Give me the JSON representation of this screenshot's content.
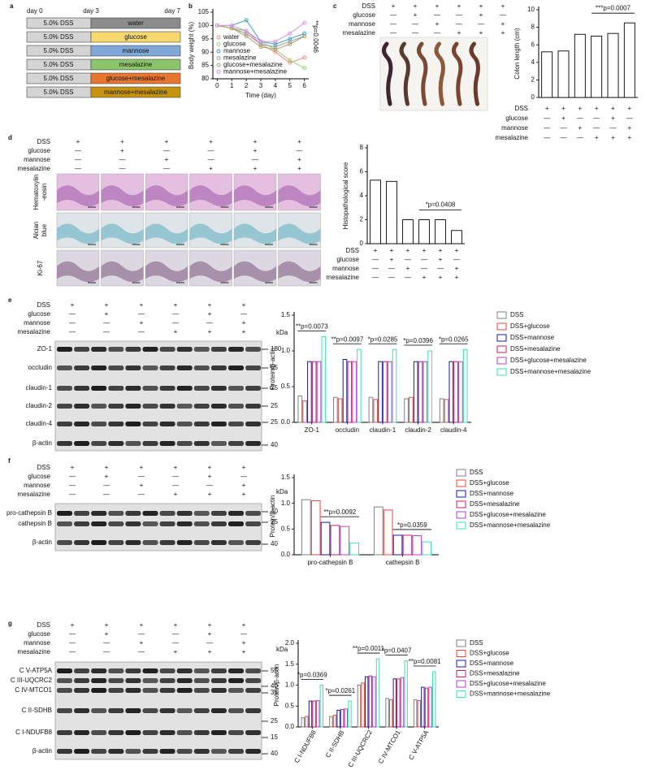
{
  "panel_labels": [
    "a",
    "b",
    "c",
    "d",
    "e",
    "f",
    "g"
  ],
  "schedule": {
    "days": [
      "day 0",
      "day 3",
      "day 7"
    ],
    "rows": [
      {
        "pretreatment": "5.0% DSS",
        "treatment": "water",
        "color": "#8c8c8c"
      },
      {
        "pretreatment": "5.0% DSS",
        "treatment": "glucose",
        "color": "#f6d86e"
      },
      {
        "pretreatment": "5.0% DSS",
        "treatment": "mannose",
        "color": "#7fa8d8"
      },
      {
        "pretreatment": "5.0% DSS",
        "treatment": "mesalazine",
        "color": "#8cc46c"
      },
      {
        "pretreatment": "5.0% DSS",
        "treatment": "glucose+mesalazine",
        "color": "#e8762e"
      },
      {
        "pretreatment": "5.0% DSS",
        "treatment": "mannose+mesalazine",
        "color": "#c6930e"
      }
    ]
  },
  "treatment_tables": {
    "c_top": {
      "rows": [
        {
          "label": "DSS",
          "marks": [
            "+",
            "+",
            "+",
            "+",
            "+",
            "+"
          ]
        },
        {
          "label": "glucose",
          "marks": [
            "—",
            "+",
            "—",
            "—",
            "+",
            "—"
          ]
        },
        {
          "label": "mannose",
          "marks": [
            "—",
            "—",
            "+",
            "—",
            "—",
            "+"
          ]
        },
        {
          "label": "mesalazine",
          "marks": [
            "—",
            "—",
            "—",
            "+",
            "+",
            "+"
          ]
        }
      ]
    },
    "c_bottom": {
      "rows": [
        {
          "label": "DSS",
          "marks": [
            "+",
            "+",
            "+",
            "+",
            "+",
            "+"
          ]
        },
        {
          "label": "glucose",
          "marks": [
            "—",
            "+",
            "—",
            "—",
            "+",
            "—"
          ]
        },
        {
          "label": "mannose",
          "marks": [
            "—",
            "—",
            "+",
            "—",
            "—",
            "+"
          ]
        },
        {
          "label": "mesalazine",
          "marks": [
            "—",
            "—",
            "—",
            "+",
            "+",
            "+"
          ]
        }
      ]
    },
    "d_top": {
      "rows": [
        {
          "label": "DSS",
          "marks": [
            "+",
            "+",
            "+",
            "+",
            "+",
            "+"
          ]
        },
        {
          "label": "glucose",
          "marks": [
            "—",
            "+",
            "—",
            "—",
            "+",
            "—"
          ]
        },
        {
          "label": "mannose",
          "marks": [
            "—",
            "—",
            "+",
            "—",
            "—",
            "+"
          ]
        },
        {
          "label": "mesalazine",
          "marks": [
            "—",
            "—",
            "—",
            "+",
            "+",
            "+"
          ]
        }
      ]
    },
    "d_bottom": {
      "rows": [
        {
          "label": "DSS",
          "marks": [
            "+",
            "+",
            "+",
            "+",
            "+",
            "+"
          ]
        },
        {
          "label": "glucose",
          "marks": [
            "—",
            "+",
            "—",
            "—",
            "+",
            "—"
          ]
        },
        {
          "label": "mannose",
          "marks": [
            "—",
            "—",
            "+",
            "—",
            "—",
            "+"
          ]
        },
        {
          "label": "mesalazine",
          "marks": [
            "—",
            "—",
            "—",
            "+",
            "+",
            "+"
          ]
        }
      ]
    },
    "e": {
      "rows": [
        {
          "label": "DSS",
          "marks": [
            "+",
            "+",
            "+",
            "+",
            "+",
            "+"
          ]
        },
        {
          "label": "glucose",
          "marks": [
            "—",
            "+",
            "—",
            "—",
            "+",
            "—"
          ]
        },
        {
          "label": "mannose",
          "marks": [
            "—",
            "—",
            "+",
            "—",
            "—",
            "+"
          ]
        },
        {
          "label": "mesalazine",
          "marks": [
            "—",
            "—",
            "—",
            "+",
            "+",
            "+"
          ]
        }
      ]
    },
    "f": {
      "rows": [
        {
          "label": "DSS",
          "marks": [
            "+",
            "+",
            "+",
            "+",
            "+",
            "+"
          ]
        },
        {
          "label": "glucose",
          "marks": [
            "—",
            "+",
            "—",
            "—",
            "+",
            "—"
          ]
        },
        {
          "label": "mannose",
          "marks": [
            "—",
            "—",
            "+",
            "—",
            "—",
            "+"
          ]
        },
        {
          "label": "mesalazine",
          "marks": [
            "—",
            "—",
            "—",
            "+",
            "+",
            "+"
          ]
        }
      ]
    },
    "g": {
      "rows": [
        {
          "label": "DSS",
          "marks": [
            "+",
            "+",
            "+",
            "+",
            "+",
            "+"
          ]
        },
        {
          "label": "glucose",
          "marks": [
            "—",
            "+",
            "—",
            "—",
            "+",
            "—"
          ]
        },
        {
          "label": "mannose",
          "marks": [
            "—",
            "—",
            "+",
            "—",
            "—",
            "+"
          ]
        },
        {
          "label": "mesalazine",
          "marks": [
            "—",
            "—",
            "—",
            "+",
            "+",
            "+"
          ]
        }
      ]
    }
  },
  "histology": {
    "row_labels": [
      [
        "Hematoxylin",
        "-eosin"
      ],
      [
        "Alcian",
        "blue"
      ],
      [
        "Ki-67"
      ]
    ]
  },
  "blots": {
    "e": {
      "unit": "kDa",
      "bands": [
        "ZO-1",
        "occludin",
        "claudin-1",
        "claudin-2",
        "claudin-4",
        "β-actin"
      ],
      "markers": [
        180,
        55,
        25,
        25,
        25,
        40
      ]
    },
    "f": {
      "unit": "kDa",
      "bands": [
        "pro-cathepsin B",
        "cathepsin B",
        "β-actin"
      ],
      "markers": [
        40,
        25,
        40
      ]
    },
    "g": {
      "unit": "kDa",
      "bands": [
        "C V-ATP5A",
        "C III-UQCRC2",
        "C IV-MTCO1",
        "C II-SDHB",
        "C I-NDUFB8",
        "β-actin"
      ],
      "markers": [
        55,
        40,
        35,
        25,
        15,
        40
      ]
    }
  },
  "chart_data": [
    {
      "type": "line",
      "xlabel": "Time (day)",
      "ylabel": "Body weight (%)",
      "x": [
        0,
        1,
        2,
        3,
        4,
        5,
        6
      ],
      "xlim": [
        -0.3,
        6.3
      ],
      "xticks": [
        0,
        1,
        2,
        3,
        4,
        5,
        6
      ],
      "ylim": [
        80,
        105
      ],
      "yticks": [
        80,
        85,
        90,
        95,
        100,
        105
      ],
      "legend": "lower left",
      "annotation": "**p=0.0046",
      "series": [
        {
          "name": "water",
          "color": "#f08a8a",
          "values": [
            100,
            99,
            98,
            93,
            90,
            86,
            88
          ]
        },
        {
          "name": "glucose",
          "color": "#9ccf7c",
          "values": [
            100,
            99,
            98,
            94,
            91,
            87,
            84
          ]
        },
        {
          "name": "mannose",
          "color": "#3c9cc0",
          "values": [
            100,
            100,
            102,
            94,
            93,
            95,
            97
          ]
        },
        {
          "name": "mesalazine",
          "color": "#9a98a8",
          "values": [
            100,
            99,
            97,
            93,
            92,
            94,
            96
          ]
        },
        {
          "name": "glucose+mesalazine",
          "color": "#a8a060",
          "values": [
            100,
            99,
            96,
            92,
            91,
            93,
            96
          ]
        },
        {
          "name": "mannose+mesalazine",
          "color": "#d890e8",
          "values": [
            100,
            100,
            98,
            94,
            94,
            97,
            101
          ]
        }
      ]
    },
    {
      "type": "bar",
      "ylabel": "Colon length (cm)",
      "values": [
        5.2,
        5.3,
        7.2,
        7.0,
        7.3,
        8.5
      ],
      "color": "#ffffff",
      "edgecolor": "#000000",
      "ylim": [
        0,
        10
      ],
      "yticks": [
        0,
        2,
        4,
        6,
        8,
        10
      ],
      "annotation": "***p=0.0007"
    },
    {
      "type": "bar",
      "ylabel": "Histopathological score",
      "values": [
        5.3,
        5.2,
        2.0,
        2.0,
        2.0,
        1.1
      ],
      "color": "#ffffff",
      "edgecolor": "#000000",
      "ylim": [
        0,
        8
      ],
      "yticks": [
        0,
        2,
        4,
        6,
        8
      ],
      "annotation": "*p=0.0408"
    },
    {
      "type": "grouped_bar",
      "ylabel": "Protein/β-actin",
      "categories": [
        "ZO-1",
        "occludin",
        "claudin-1",
        "claudin-2",
        "claudin-4"
      ],
      "ylim": [
        0,
        1.5
      ],
      "yticks": [
        {
          "value": 0,
          "label": "0.0"
        },
        0.5,
        {
          "value": 1,
          "label": "1.0"
        },
        1.5
      ],
      "legend": "right",
      "annotations": [
        "**p=0.0073",
        "**p=0.0097",
        "*p=0.0285",
        "*p=0.0396",
        "*p=0.0265"
      ],
      "series": [
        {
          "name": "DSS",
          "color": "#808080",
          "values": [
            0.37,
            0.35,
            0.35,
            0.33,
            0.33
          ]
        },
        {
          "name": "DSS+glucose",
          "color": "#e8483c",
          "values": [
            0.3,
            0.33,
            0.32,
            0.35,
            0.32
          ]
        },
        {
          "name": "DSS+mannose",
          "color": "#1a1aa0",
          "values": [
            0.85,
            0.88,
            0.85,
            0.85,
            0.85
          ]
        },
        {
          "name": "DSS+mesalazine",
          "color": "#c0206a",
          "values": [
            0.85,
            0.85,
            0.85,
            0.85,
            0.85
          ]
        },
        {
          "name": "DSS+glucose+mesalazine",
          "color": "#b040d0",
          "values": [
            0.85,
            0.85,
            0.85,
            0.85,
            0.85
          ]
        },
        {
          "name": "DSS+mannose+mesalazine",
          "color": "#40e0b0",
          "values": [
            1.2,
            1.02,
            1.02,
            1.0,
            1.02
          ]
        }
      ]
    },
    {
      "type": "grouped_bar",
      "ylabel": "Protein/β-actin",
      "categories": [
        "pro-cathepsin B",
        "cathepsin B"
      ],
      "ylim": [
        0,
        1.5
      ],
      "yticks": [
        {
          "value": 0,
          "label": "0.0"
        },
        0.5,
        {
          "value": 1,
          "label": "1.0"
        },
        1.5
      ],
      "legend": "right",
      "annotations": [
        "**p=0.0092",
        "*p=0.0359"
      ],
      "annotation_from": 2,
      "series": [
        {
          "name": "DSS",
          "color": "#808080",
          "values": [
            1.07,
            0.93
          ]
        },
        {
          "name": "DSS+glucose",
          "color": "#e8483c",
          "values": [
            1.05,
            0.87
          ]
        },
        {
          "name": "DSS+mannose",
          "color": "#1a1aa0",
          "values": [
            0.63,
            0.38
          ]
        },
        {
          "name": "DSS+mesalazine",
          "color": "#c0206a",
          "values": [
            0.57,
            0.38
          ]
        },
        {
          "name": "DSS+glucose+mesalazine",
          "color": "#b040d0",
          "values": [
            0.55,
            0.37
          ]
        },
        {
          "name": "DSS+mannose+mesalazine",
          "color": "#40e0b0",
          "values": [
            0.23,
            0.25
          ]
        }
      ]
    },
    {
      "type": "grouped_bar",
      "ylabel": "Protein/β-actin",
      "categories": [
        "C I-NDUFB8",
        "C II-SDHB",
        "C III-UQCRC2",
        "C IV-MTCO1",
        "C V-ATP5A"
      ],
      "ylim": [
        0,
        2
      ],
      "yticks": [
        {
          "value": 0,
          "label": "0.0"
        },
        0.5,
        {
          "value": 1,
          "label": "1.0"
        },
        1.5,
        {
          "value": 2,
          "label": "2.0"
        }
      ],
      "legend": "right",
      "xtick_rotation": 60,
      "annotations": [
        "*p=0.0369",
        "*p=0.0261",
        "**p=0.0011",
        "*p=0.0407",
        "**p=0.0081"
      ],
      "series": [
        {
          "name": "DSS",
          "color": "#808080",
          "values": [
            0.22,
            0.25,
            1.0,
            0.68,
            0.65
          ]
        },
        {
          "name": "DSS+glucose",
          "color": "#e8483c",
          "values": [
            0.25,
            0.28,
            1.05,
            0.65,
            0.63
          ]
        },
        {
          "name": "DSS+mannose",
          "color": "#1a1aa0",
          "values": [
            0.62,
            0.4,
            1.2,
            1.15,
            0.95
          ]
        },
        {
          "name": "DSS+mesalazine",
          "color": "#c0206a",
          "values": [
            0.62,
            0.42,
            1.22,
            1.15,
            0.93
          ]
        },
        {
          "name": "DSS+glucose+mesalazine",
          "color": "#b040d0",
          "values": [
            0.63,
            0.43,
            1.2,
            1.18,
            0.95
          ]
        },
        {
          "name": "DSS+mannose+mesalazine",
          "color": "#40e0b0",
          "values": [
            1.0,
            0.62,
            1.63,
            1.58,
            1.32
          ]
        }
      ]
    }
  ]
}
